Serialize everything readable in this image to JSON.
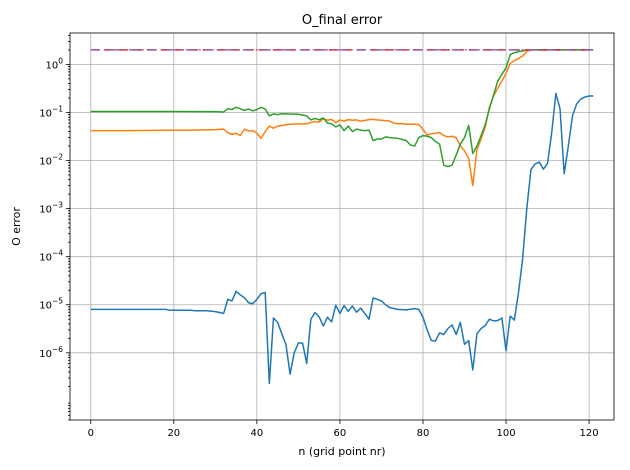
{
  "chart_data": {
    "type": "line",
    "title": "O_final error",
    "xlabel": "n (grid point nr)",
    "ylabel": "O error",
    "yscale": "log",
    "xlim": [
      -5,
      126
    ],
    "ylim": [
      4e-08,
      4.5
    ],
    "xticks": [
      0,
      20,
      40,
      60,
      80,
      100,
      120
    ],
    "yticks": [
      1e-06,
      1e-05,
      0.0001,
      0.001,
      0.01,
      0.1,
      1
    ],
    "ytick_labels": [
      {
        "base": "10",
        "exp": "−6"
      },
      {
        "base": "10",
        "exp": "−5"
      },
      {
        "base": "10",
        "exp": "−4"
      },
      {
        "base": "10",
        "exp": "−3"
      },
      {
        "base": "10",
        "exp": "−2"
      },
      {
        "base": "10",
        "exp": "−1"
      },
      {
        "base": "10",
        "exp": "0"
      }
    ],
    "grid": true,
    "series": [
      {
        "color": "#1f77b4",
        "style": "solid",
        "points": [
          [
            0,
            8e-06
          ],
          [
            5,
            8e-06
          ],
          [
            10,
            8e-06
          ],
          [
            15,
            8e-06
          ],
          [
            18,
            8e-06
          ],
          [
            19,
            7.7e-06
          ],
          [
            20,
            7.7e-06
          ],
          [
            22,
            7.7e-06
          ],
          [
            24,
            7.7e-06
          ],
          [
            25,
            7.5e-06
          ],
          [
            28,
            7.5e-06
          ],
          [
            30,
            7.2e-06
          ],
          [
            32,
            6.6e-06
          ],
          [
            33,
            1.3e-05
          ],
          [
            34,
            1.2e-05
          ],
          [
            35,
            1.9e-05
          ],
          [
            36,
            1.6e-05
          ],
          [
            37,
            1.4e-05
          ],
          [
            38,
            1.1e-05
          ],
          [
            39,
            1.05e-05
          ],
          [
            40,
            1.3e-05
          ],
          [
            41,
            1.7e-05
          ],
          [
            42,
            1.8e-05
          ],
          [
            43,
            2.3e-07
          ],
          [
            44,
            5.3e-06
          ],
          [
            45,
            4.3e-06
          ],
          [
            46,
            2.5e-06
          ],
          [
            47,
            1.5e-06
          ],
          [
            48,
            3.6e-07
          ],
          [
            49,
            1e-06
          ],
          [
            50,
            1.6e-06
          ],
          [
            51,
            1.6e-06
          ],
          [
            52,
            6e-07
          ],
          [
            53,
            5e-06
          ],
          [
            54,
            6.9e-06
          ],
          [
            55,
            5.6e-06
          ],
          [
            56,
            3.6e-06
          ],
          [
            57,
            5.5e-06
          ],
          [
            58,
            4.4e-06
          ],
          [
            59,
            9.8e-06
          ],
          [
            60,
            6.6e-06
          ],
          [
            61,
            9.6e-06
          ],
          [
            62,
            7.3e-06
          ],
          [
            63,
            9.4e-06
          ],
          [
            64,
            7e-06
          ],
          [
            65,
            8.5e-06
          ],
          [
            66,
            6.6e-06
          ],
          [
            67,
            5e-06
          ],
          [
            68,
            1.38e-05
          ],
          [
            69,
            1.3e-05
          ],
          [
            70,
            1.2e-05
          ],
          [
            71,
            1e-05
          ],
          [
            72,
            8.7e-06
          ],
          [
            74,
            8e-06
          ],
          [
            76,
            7.8e-06
          ],
          [
            78,
            8.3e-06
          ],
          [
            79,
            8e-06
          ],
          [
            80,
            5.5e-06
          ],
          [
            81,
            3e-06
          ],
          [
            82,
            1.8e-06
          ],
          [
            83,
            1.75e-06
          ],
          [
            84,
            2.6e-06
          ],
          [
            85,
            2.4e-06
          ],
          [
            86,
            3.2e-06
          ],
          [
            87,
            3.8e-06
          ],
          [
            88,
            2.4e-06
          ],
          [
            89,
            4.3e-06
          ],
          [
            90,
            1.5e-06
          ],
          [
            91,
            1.8e-06
          ],
          [
            92,
            4.4e-07
          ],
          [
            93,
            2.5e-06
          ],
          [
            94,
            3.2e-06
          ],
          [
            95,
            3.7e-06
          ],
          [
            96,
            5e-06
          ],
          [
            97,
            4.6e-06
          ],
          [
            98,
            4.7e-06
          ],
          [
            99,
            5.3e-06
          ],
          [
            100,
            1.1e-06
          ],
          [
            101,
            5.8e-06
          ],
          [
            102,
            4.8e-06
          ],
          [
            103,
            1.8e-05
          ],
          [
            104,
            9e-05
          ],
          [
            105,
            0.001
          ],
          [
            106,
            0.0065
          ],
          [
            107,
            0.0085
          ],
          [
            108,
            0.0093
          ],
          [
            109,
            0.0066
          ],
          [
            110,
            0.0087
          ],
          [
            111,
            0.038
          ],
          [
            112,
            0.25
          ],
          [
            113,
            0.12
          ],
          [
            114,
            0.0053
          ],
          [
            115,
            0.02
          ],
          [
            116,
            0.085
          ],
          [
            117,
            0.15
          ],
          [
            118,
            0.19
          ],
          [
            119,
            0.21
          ],
          [
            120,
            0.22
          ],
          [
            121,
            0.22
          ]
        ]
      },
      {
        "color": "#ff7f0e",
        "style": "solid",
        "points": [
          [
            0,
            0.042
          ],
          [
            10,
            0.042
          ],
          [
            20,
            0.043
          ],
          [
            25,
            0.043
          ],
          [
            30,
            0.044
          ],
          [
            32,
            0.045
          ],
          [
            33,
            0.038
          ],
          [
            34,
            0.035
          ],
          [
            35,
            0.037
          ],
          [
            36,
            0.033
          ],
          [
            37,
            0.045
          ],
          [
            38,
            0.041
          ],
          [
            39,
            0.042
          ],
          [
            40,
            0.037
          ],
          [
            41,
            0.029
          ],
          [
            42,
            0.04
          ],
          [
            43,
            0.052
          ],
          [
            44,
            0.047
          ],
          [
            45,
            0.052
          ],
          [
            46,
            0.054
          ],
          [
            48,
            0.057
          ],
          [
            50,
            0.058
          ],
          [
            52,
            0.058
          ],
          [
            53,
            0.062
          ],
          [
            54,
            0.065
          ],
          [
            55,
            0.063
          ],
          [
            56,
            0.074
          ],
          [
            57,
            0.069
          ],
          [
            58,
            0.072
          ],
          [
            59,
            0.061
          ],
          [
            60,
            0.07
          ],
          [
            61,
            0.066
          ],
          [
            62,
            0.071
          ],
          [
            63,
            0.069
          ],
          [
            64,
            0.07
          ],
          [
            65,
            0.066
          ],
          [
            66,
            0.068
          ],
          [
            67,
            0.071
          ],
          [
            68,
            0.072
          ],
          [
            69,
            0.07
          ],
          [
            70,
            0.069
          ],
          [
            72,
            0.066
          ],
          [
            73,
            0.06
          ],
          [
            74,
            0.058
          ],
          [
            75,
            0.059
          ],
          [
            76,
            0.057
          ],
          [
            78,
            0.057
          ],
          [
            79,
            0.056
          ],
          [
            80,
            0.045
          ],
          [
            81,
            0.034
          ],
          [
            82,
            0.036
          ],
          [
            83,
            0.037
          ],
          [
            84,
            0.038
          ],
          [
            85,
            0.033
          ],
          [
            86,
            0.031
          ],
          [
            87,
            0.032
          ],
          [
            88,
            0.03
          ],
          [
            89,
            0.02
          ],
          [
            90,
            0.016
          ],
          [
            91,
            0.011
          ],
          [
            92,
            0.003
          ],
          [
            93,
            0.017
          ],
          [
            94,
            0.028
          ],
          [
            95,
            0.05
          ],
          [
            96,
            0.13
          ],
          [
            97,
            0.22
          ],
          [
            98,
            0.32
          ],
          [
            99,
            0.45
          ],
          [
            100,
            0.65
          ],
          [
            101,
            1.05
          ],
          [
            102,
            1.2
          ],
          [
            103,
            1.32
          ],
          [
            104,
            1.5
          ],
          [
            105,
            1.85
          ],
          [
            106,
            2
          ],
          [
            108,
            2
          ],
          [
            110,
            2
          ],
          [
            112,
            2
          ],
          [
            114,
            2
          ],
          [
            116,
            2
          ],
          [
            118,
            2
          ],
          [
            121,
            2
          ]
        ]
      },
      {
        "color": "#2ca02c",
        "style": "solid",
        "points": [
          [
            0,
            0.105
          ],
          [
            10,
            0.105
          ],
          [
            20,
            0.105
          ],
          [
            30,
            0.104
          ],
          [
            32,
            0.102
          ],
          [
            33,
            0.12
          ],
          [
            34,
            0.115
          ],
          [
            35,
            0.128
          ],
          [
            36,
            0.12
          ],
          [
            37,
            0.11
          ],
          [
            38,
            0.118
          ],
          [
            39,
            0.108
          ],
          [
            40,
            0.115
          ],
          [
            41,
            0.128
          ],
          [
            42,
            0.118
          ],
          [
            43,
            0.085
          ],
          [
            44,
            0.093
          ],
          [
            45,
            0.09
          ],
          [
            46,
            0.094
          ],
          [
            48,
            0.093
          ],
          [
            50,
            0.092
          ],
          [
            52,
            0.085
          ],
          [
            53,
            0.07
          ],
          [
            54,
            0.075
          ],
          [
            55,
            0.07
          ],
          [
            56,
            0.077
          ],
          [
            57,
            0.06
          ],
          [
            58,
            0.058
          ],
          [
            59,
            0.05
          ],
          [
            60,
            0.055
          ],
          [
            61,
            0.042
          ],
          [
            62,
            0.052
          ],
          [
            63,
            0.04
          ],
          [
            64,
            0.045
          ],
          [
            65,
            0.043
          ],
          [
            66,
            0.042
          ],
          [
            67,
            0.043
          ],
          [
            68,
            0.026
          ],
          [
            69,
            0.028
          ],
          [
            70,
            0.028
          ],
          [
            71,
            0.031
          ],
          [
            72,
            0.03
          ],
          [
            74,
            0.029
          ],
          [
            76,
            0.026
          ],
          [
            77,
            0.021
          ],
          [
            78,
            0.02
          ],
          [
            79,
            0.03
          ],
          [
            80,
            0.033
          ],
          [
            81,
            0.032
          ],
          [
            82,
            0.03
          ],
          [
            83,
            0.025
          ],
          [
            84,
            0.022
          ],
          [
            85,
            0.008
          ],
          [
            86,
            0.0075
          ],
          [
            87,
            0.008
          ],
          [
            88,
            0.013
          ],
          [
            89,
            0.022
          ],
          [
            90,
            0.03
          ],
          [
            91,
            0.054
          ],
          [
            92,
            0.014
          ],
          [
            93,
            0.02
          ],
          [
            94,
            0.033
          ],
          [
            95,
            0.056
          ],
          [
            96,
            0.12
          ],
          [
            97,
            0.23
          ],
          [
            98,
            0.45
          ],
          [
            99,
            0.62
          ],
          [
            100,
            0.85
          ],
          [
            101,
            1.6
          ],
          [
            102,
            1.75
          ],
          [
            103,
            1.85
          ],
          [
            104,
            1.9
          ],
          [
            105,
            2
          ],
          [
            106,
            2
          ],
          [
            108,
            2
          ],
          [
            110,
            2
          ],
          [
            112,
            2
          ],
          [
            114,
            2
          ],
          [
            116,
            2
          ],
          [
            118,
            2
          ],
          [
            121,
            2
          ]
        ]
      },
      {
        "color": "#d62728",
        "style": "dashed",
        "points": [
          [
            0,
            2
          ],
          [
            10,
            2
          ],
          [
            20,
            2
          ],
          [
            30,
            2
          ],
          [
            40,
            2
          ],
          [
            50,
            2
          ],
          [
            60,
            2
          ],
          [
            70,
            2
          ],
          [
            80,
            2
          ],
          [
            90,
            2
          ],
          [
            100,
            2
          ],
          [
            110,
            2
          ],
          [
            121,
            2
          ]
        ]
      },
      {
        "color": "#9467bd",
        "style": "dashdot",
        "points": [
          [
            0,
            2
          ],
          [
            10,
            2
          ],
          [
            20,
            2
          ],
          [
            30,
            2
          ],
          [
            40,
            2
          ],
          [
            50,
            2
          ],
          [
            60,
            2
          ],
          [
            70,
            2
          ],
          [
            80,
            2
          ],
          [
            90,
            2
          ],
          [
            100,
            2
          ],
          [
            110,
            2
          ],
          [
            121,
            2
          ]
        ]
      }
    ]
  }
}
